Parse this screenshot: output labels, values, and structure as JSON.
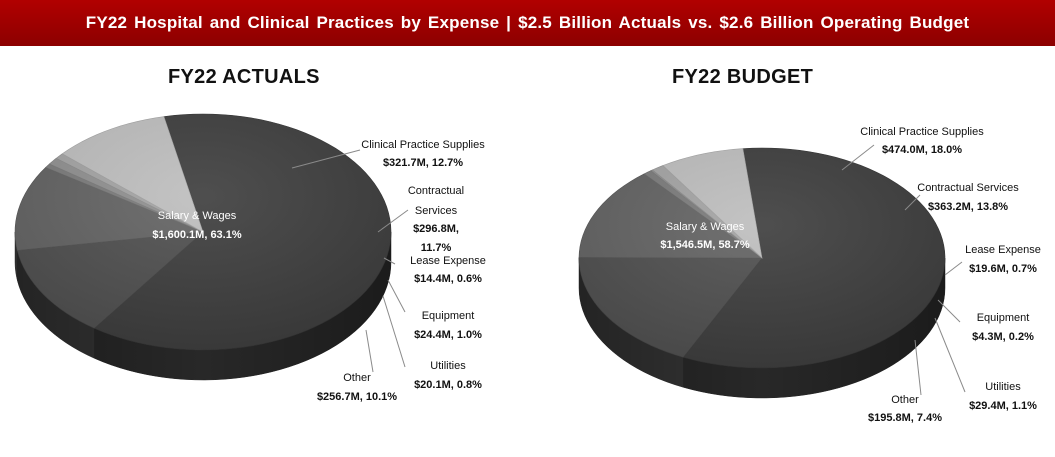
{
  "banner": {
    "title": "FY22 Hospital and Clinical Practices by Expense | $2.5 Billion Actuals vs. $2.6 Billion Operating Budget",
    "color": "#a00000"
  },
  "chart_data": [
    {
      "type": "pie",
      "title": "FY22 ACTUALS",
      "slices": [
        {
          "name": "Salary & Wages",
          "value": 1600.1,
          "pct": 63.1,
          "label": "Salary & Wages",
          "value_label": "$1,600.1M, 63.1%",
          "color": "#3b3b3b"
        },
        {
          "name": "Clinical Practice Supplies",
          "value": 321.7,
          "pct": 12.7,
          "label": "Clinical Practice Supplies",
          "value_label": "$321.7M, 12.7%",
          "color": "#4d4d4d"
        },
        {
          "name": "Contractual Services",
          "value": 296.8,
          "pct": 11.7,
          "label": "Contractual Services",
          "value_label": "$296.8M, 11.7%",
          "color": "#616161"
        },
        {
          "name": "Lease Expense",
          "value": 14.4,
          "pct": 0.6,
          "label": "Lease Expense",
          "value_label": "$14.4M, 0.6%",
          "color": "#7a7a7a"
        },
        {
          "name": "Equipment",
          "value": 24.4,
          "pct": 1.0,
          "label": "Equipment",
          "value_label": "$24.4M, 1.0%",
          "color": "#8f8f8f"
        },
        {
          "name": "Utilities",
          "value": 20.1,
          "pct": 0.8,
          "label": "Utilities",
          "value_label": "$20.1M, 0.8%",
          "color": "#a3a3a3"
        },
        {
          "name": "Other",
          "value": 256.7,
          "pct": 10.1,
          "label": "Other",
          "value_label": "$256.7M, 10.1%",
          "color": "#bdbdbd"
        }
      ]
    },
    {
      "type": "pie",
      "title": "FY22 BUDGET",
      "slices": [
        {
          "name": "Salary & Wages",
          "value": 1546.5,
          "pct": 58.7,
          "label": "Salary & Wages",
          "value_label": "$1,546.5M, 58.7%",
          "color": "#3b3b3b"
        },
        {
          "name": "Clinical Practice Supplies",
          "value": 474.0,
          "pct": 18.0,
          "label": "Clinical Practice Supplies",
          "value_label": "$474.0M, 18.0%",
          "color": "#4d4d4d"
        },
        {
          "name": "Contractual Services",
          "value": 363.2,
          "pct": 13.8,
          "label": "Contractual Services",
          "value_label": "$363.2M, 13.8%",
          "color": "#616161"
        },
        {
          "name": "Lease Expense",
          "value": 19.6,
          "pct": 0.7,
          "label": "Lease Expense",
          "value_label": "$19.6M, 0.7%",
          "color": "#7a7a7a"
        },
        {
          "name": "Equipment",
          "value": 4.3,
          "pct": 0.2,
          "label": "Equipment",
          "value_label": "$4.3M, 0.2%",
          "color": "#8f8f8f"
        },
        {
          "name": "Utilities",
          "value": 29.4,
          "pct": 1.1,
          "label": "Utilities",
          "value_label": "$29.4M, 1.1%",
          "color": "#a3a3a3"
        },
        {
          "name": "Other",
          "value": 195.8,
          "pct": 7.4,
          "label": "Other",
          "value_label": "$195.8M, 7.4%",
          "color": "#bdbdbd"
        }
      ]
    }
  ]
}
